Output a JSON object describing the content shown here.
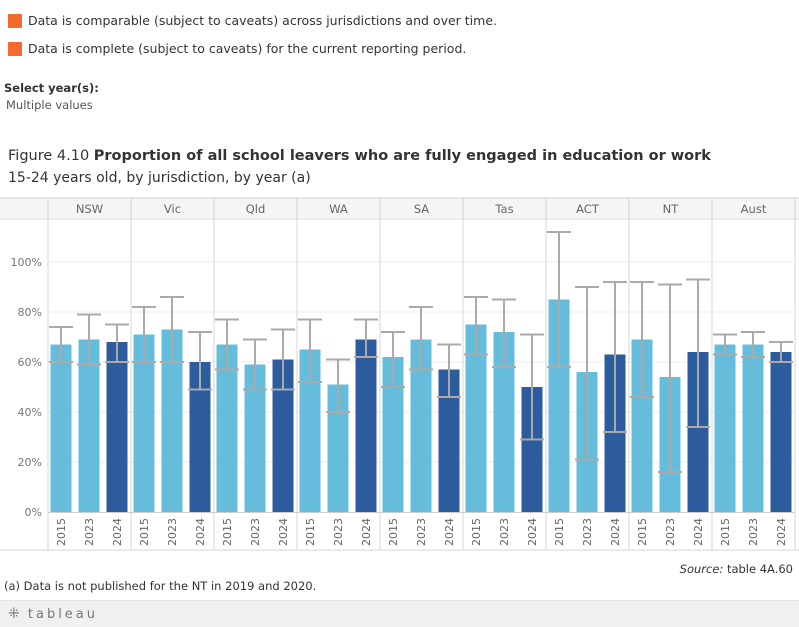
{
  "legend": [
    {
      "label": "Data is comparable (subject to caveats) across jurisdictions and over time.",
      "color": "#f26b2d"
    },
    {
      "label": "Data is complete (subject to caveats) for the current reporting period.",
      "color": "#f26b2d"
    }
  ],
  "filter": {
    "label": "Select year(s):",
    "value": "Multiple values"
  },
  "figure": {
    "prefix": "Figure 4.10",
    "title": "Proportion of all school leavers who are fully engaged in education or work",
    "subtitle": "15-24 years old, by jurisdiction, by year (a)"
  },
  "chart_data": {
    "type": "bar",
    "jurisdictions": [
      "NSW",
      "Vic",
      "Qld",
      "WA",
      "SA",
      "Tas",
      "ACT",
      "NT",
      "Aust"
    ],
    "years": [
      "2015",
      "2023",
      "2024"
    ],
    "y_ticks": [
      "0%",
      "20%",
      "40%",
      "60%",
      "80%",
      "100%"
    ],
    "ylim": [
      0,
      115
    ],
    "colors": {
      "prior": "#66bcdb",
      "current": "#2c5b9e",
      "error": "#aaaaaa"
    },
    "series": [
      {
        "jurisdiction": "NSW",
        "values": [
          67,
          69,
          68
        ],
        "lower": [
          60,
          59,
          60
        ],
        "upper": [
          74,
          79,
          75
        ]
      },
      {
        "jurisdiction": "Vic",
        "values": [
          71,
          73,
          60
        ],
        "lower": [
          60,
          60,
          49
        ],
        "upper": [
          82,
          86,
          72
        ]
      },
      {
        "jurisdiction": "Qld",
        "values": [
          67,
          59,
          61
        ],
        "lower": [
          57,
          49,
          49
        ],
        "upper": [
          77,
          69,
          73
        ]
      },
      {
        "jurisdiction": "WA",
        "values": [
          65,
          51,
          69
        ],
        "lower": [
          52,
          40,
          62
        ],
        "upper": [
          77,
          61,
          77
        ]
      },
      {
        "jurisdiction": "SA",
        "values": [
          62,
          69,
          57
        ],
        "lower": [
          50,
          57,
          46
        ],
        "upper": [
          72,
          82,
          67
        ]
      },
      {
        "jurisdiction": "Tas",
        "values": [
          75,
          72,
          50
        ],
        "lower": [
          63,
          58,
          29
        ],
        "upper": [
          86,
          85,
          71
        ]
      },
      {
        "jurisdiction": "ACT",
        "values": [
          85,
          56,
          63
        ],
        "lower": [
          58,
          21,
          32
        ],
        "upper": [
          112,
          90,
          92
        ]
      },
      {
        "jurisdiction": "NT",
        "values": [
          69,
          54,
          64
        ],
        "lower": [
          46,
          16,
          34
        ],
        "upper": [
          92,
          91,
          93
        ]
      },
      {
        "jurisdiction": "Aust",
        "values": [
          67,
          67,
          64
        ],
        "lower": [
          63,
          62,
          60
        ],
        "upper": [
          71,
          72,
          68
        ]
      }
    ]
  },
  "source": {
    "prefix": "Source:",
    "text": "table 4A.60"
  },
  "footnote": "(a) Data is not published for the NT in 2019 and 2020.",
  "branding": {
    "plus": "⁜",
    "name": "tableau"
  }
}
